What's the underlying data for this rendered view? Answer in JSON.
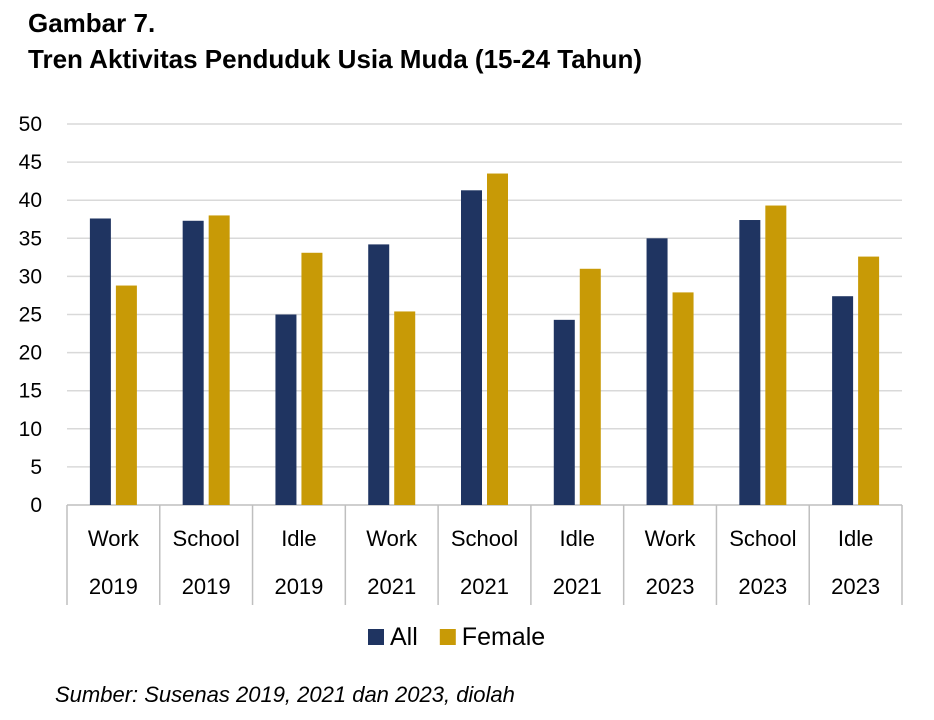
{
  "figure": {
    "label": "Gambar 7.",
    "title": "Tren Aktivitas Penduduk Usia Muda (15-24 Tahun)",
    "source": "Sumber: Susenas 2019, 2021 dan 2023, diolah"
  },
  "chart_data": {
    "type": "bar",
    "categories": [
      [
        "Work",
        "2019"
      ],
      [
        "School",
        "2019"
      ],
      [
        "Idle",
        "2019"
      ],
      [
        "Work",
        "2021"
      ],
      [
        "School",
        "2021"
      ],
      [
        "Idle",
        "2021"
      ],
      [
        "Work",
        "2023"
      ],
      [
        "School",
        "2023"
      ],
      [
        "Idle",
        "2023"
      ]
    ],
    "series": [
      {
        "name": "All",
        "color": "#1f3461",
        "values": [
          37.6,
          37.3,
          25.0,
          34.2,
          41.3,
          24.3,
          35.0,
          37.4,
          27.4
        ]
      },
      {
        "name": "Female",
        "color": "#c89a06",
        "values": [
          28.8,
          38.0,
          33.1,
          25.4,
          43.5,
          31.0,
          27.9,
          39.3,
          32.6
        ]
      }
    ],
    "ylim": [
      0,
      50
    ],
    "yticks": [
      0,
      5,
      10,
      15,
      20,
      25,
      30,
      35,
      40,
      45,
      50
    ],
    "xlabel": "",
    "ylabel": "",
    "grid": true,
    "legend": "bottom"
  }
}
